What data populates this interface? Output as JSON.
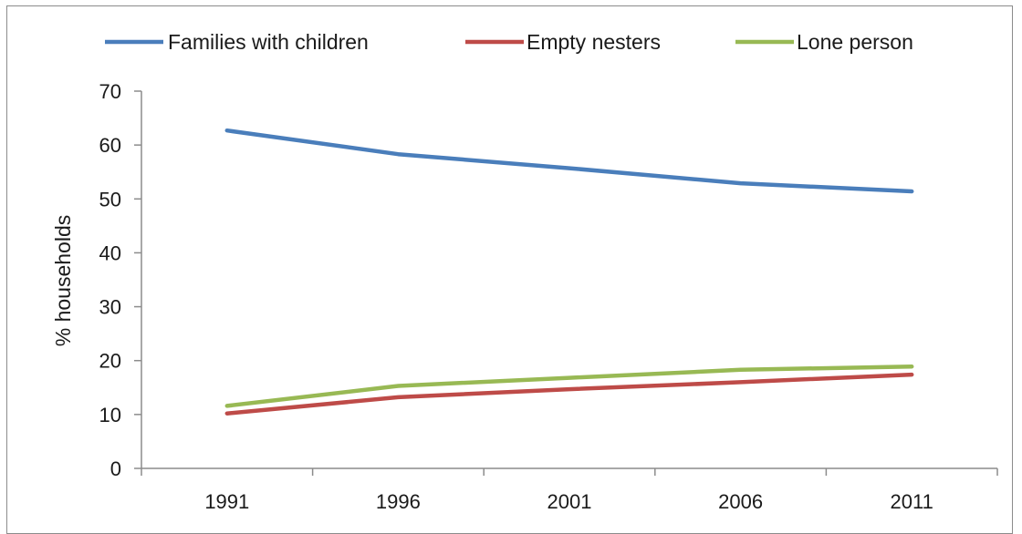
{
  "chart_data": {
    "type": "line",
    "title": "",
    "xlabel": "",
    "ylabel": "% households",
    "categories": [
      "1991",
      "1996",
      "2001",
      "2006",
      "2011"
    ],
    "ylim": [
      0,
      70
    ],
    "yticks": [
      "0",
      "10",
      "20",
      "30",
      "40",
      "50",
      "60",
      "70"
    ],
    "grid": false,
    "legend_position": "top",
    "series": [
      {
        "name": "Families with children",
        "color": "#4a7ebb",
        "values": [
          62.7,
          58.3,
          55.7,
          52.9,
          51.4
        ]
      },
      {
        "name": "Empty nesters",
        "color": "#be4b48",
        "values": [
          10.2,
          13.2,
          14.7,
          16.0,
          17.4
        ]
      },
      {
        "name": "Lone person",
        "color": "#98b954",
        "values": [
          11.6,
          15.3,
          16.8,
          18.3,
          18.9
        ]
      }
    ]
  }
}
